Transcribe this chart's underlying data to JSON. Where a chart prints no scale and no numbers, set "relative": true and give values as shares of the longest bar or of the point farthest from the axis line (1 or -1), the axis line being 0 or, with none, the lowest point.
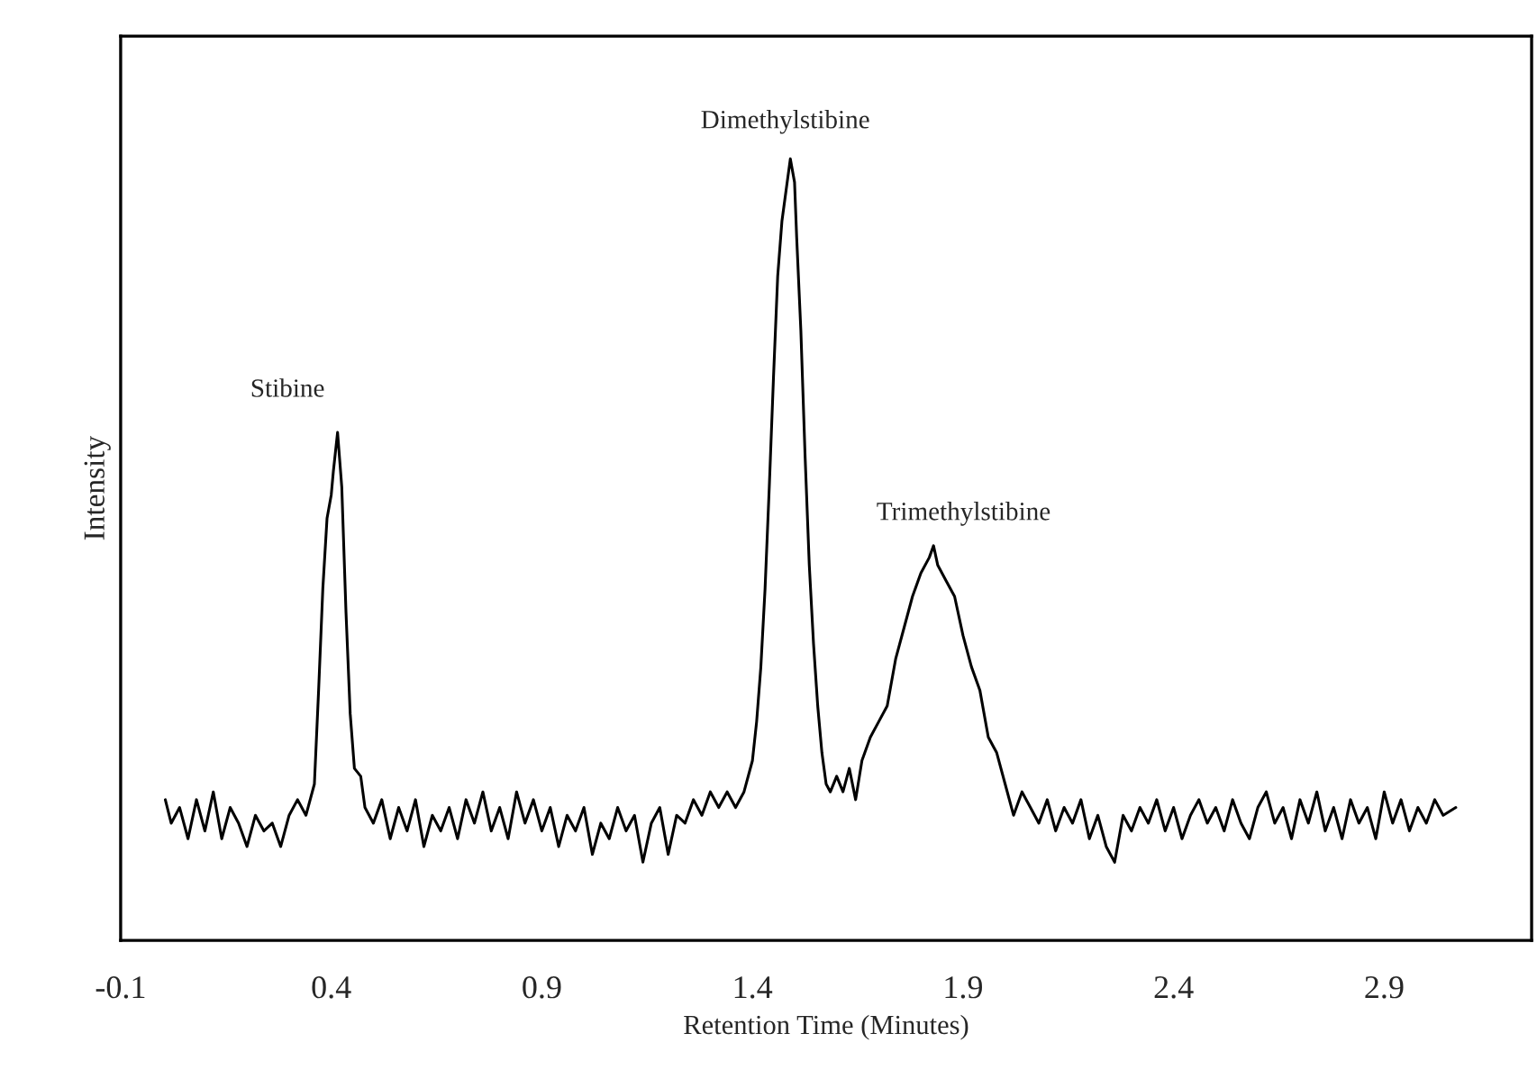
{
  "chart_data": {
    "type": "line",
    "relative": true,
    "xlabel": "Retention Time (Minutes)",
    "ylabel": "Intensity",
    "xlim": [
      -0.1,
      3.25
    ],
    "xticks": [
      -0.1,
      0.4,
      0.9,
      1.4,
      1.9,
      2.4,
      2.9
    ],
    "tick_labels": "x",
    "grid": false,
    "legend": false,
    "annotations": [
      {
        "text": "Stibine",
        "x": 0.415,
        "y": 0.65
      },
      {
        "text": "Dimethylstibine",
        "x": 1.49,
        "y": 1.0
      },
      {
        "text": "Trimethylstibine",
        "x": 1.83,
        "y": 0.505
      }
    ],
    "series": [
      {
        "color": "#000000",
        "x": [
          0.006,
          0.02,
          0.04,
          0.06,
          0.08,
          0.1,
          0.12,
          0.14,
          0.16,
          0.18,
          0.2,
          0.22,
          0.24,
          0.26,
          0.28,
          0.3,
          0.32,
          0.34,
          0.36,
          0.37,
          0.38,
          0.39,
          0.4,
          0.405,
          0.415,
          0.425,
          0.435,
          0.445,
          0.455,
          0.47,
          0.48,
          0.5,
          0.52,
          0.54,
          0.56,
          0.58,
          0.6,
          0.62,
          0.64,
          0.66,
          0.68,
          0.7,
          0.72,
          0.74,
          0.76,
          0.78,
          0.8,
          0.82,
          0.84,
          0.86,
          0.88,
          0.9,
          0.92,
          0.94,
          0.96,
          0.98,
          1.0,
          1.02,
          1.04,
          1.06,
          1.08,
          1.1,
          1.12,
          1.14,
          1.16,
          1.18,
          1.2,
          1.22,
          1.24,
          1.26,
          1.28,
          1.3,
          1.32,
          1.34,
          1.36,
          1.38,
          1.4,
          1.41,
          1.42,
          1.43,
          1.44,
          1.45,
          1.46,
          1.47,
          1.48,
          1.49,
          1.5,
          1.505,
          1.515,
          1.525,
          1.535,
          1.545,
          1.555,
          1.565,
          1.575,
          1.585,
          1.6,
          1.615,
          1.63,
          1.645,
          1.66,
          1.68,
          1.7,
          1.72,
          1.74,
          1.76,
          1.78,
          1.8,
          1.82,
          1.83,
          1.84,
          1.86,
          1.88,
          1.9,
          1.92,
          1.94,
          1.96,
          1.98,
          2.0,
          2.02,
          2.04,
          2.06,
          2.08,
          2.1,
          2.12,
          2.14,
          2.16,
          2.18,
          2.2,
          2.22,
          2.24,
          2.26,
          2.28,
          2.3,
          2.32,
          2.34,
          2.36,
          2.38,
          2.4,
          2.42,
          2.44,
          2.46,
          2.48,
          2.5,
          2.52,
          2.54,
          2.56,
          2.58,
          2.6,
          2.62,
          2.64,
          2.66,
          2.68,
          2.7,
          2.72,
          2.74,
          2.76,
          2.78,
          2.8,
          2.82,
          2.84,
          2.86,
          2.88,
          2.9,
          2.92,
          2.94,
          2.96,
          2.98,
          3.0,
          3.02,
          3.04,
          3.07
        ],
        "values": [
          0.18,
          0.15,
          0.17,
          0.13,
          0.18,
          0.14,
          0.19,
          0.13,
          0.17,
          0.15,
          0.12,
          0.16,
          0.14,
          0.15,
          0.12,
          0.16,
          0.18,
          0.16,
          0.2,
          0.32,
          0.45,
          0.54,
          0.57,
          0.6,
          0.65,
          0.58,
          0.42,
          0.29,
          0.22,
          0.21,
          0.17,
          0.15,
          0.18,
          0.13,
          0.17,
          0.14,
          0.18,
          0.12,
          0.16,
          0.14,
          0.17,
          0.13,
          0.18,
          0.15,
          0.19,
          0.14,
          0.17,
          0.13,
          0.19,
          0.15,
          0.18,
          0.14,
          0.17,
          0.12,
          0.16,
          0.14,
          0.17,
          0.11,
          0.15,
          0.13,
          0.17,
          0.14,
          0.16,
          0.1,
          0.15,
          0.17,
          0.11,
          0.16,
          0.15,
          0.18,
          0.16,
          0.19,
          0.17,
          0.19,
          0.17,
          0.19,
          0.23,
          0.28,
          0.35,
          0.45,
          0.58,
          0.72,
          0.85,
          0.92,
          0.96,
          1.0,
          0.97,
          0.9,
          0.78,
          0.62,
          0.48,
          0.38,
          0.3,
          0.24,
          0.2,
          0.19,
          0.21,
          0.19,
          0.22,
          0.18,
          0.23,
          0.26,
          0.28,
          0.3,
          0.36,
          0.4,
          0.44,
          0.47,
          0.49,
          0.505,
          0.48,
          0.46,
          0.44,
          0.39,
          0.35,
          0.32,
          0.26,
          0.24,
          0.2,
          0.16,
          0.19,
          0.17,
          0.15,
          0.18,
          0.14,
          0.17,
          0.15,
          0.18,
          0.13,
          0.16,
          0.12,
          0.1,
          0.16,
          0.14,
          0.17,
          0.15,
          0.18,
          0.14,
          0.17,
          0.13,
          0.16,
          0.18,
          0.15,
          0.17,
          0.14,
          0.18,
          0.15,
          0.13,
          0.17,
          0.19,
          0.15,
          0.17,
          0.13,
          0.18,
          0.15,
          0.19,
          0.14,
          0.17,
          0.13,
          0.18,
          0.15,
          0.17,
          0.13,
          0.19,
          0.15,
          0.18,
          0.14,
          0.17,
          0.15,
          0.18,
          0.16,
          0.17
        ]
      }
    ]
  }
}
